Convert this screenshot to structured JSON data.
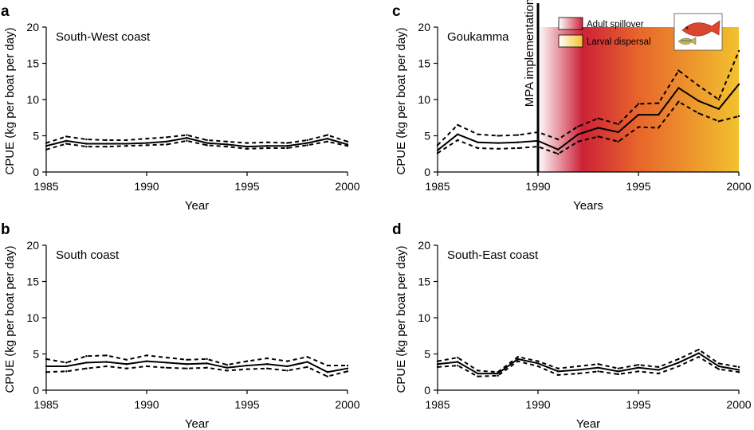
{
  "chart_data": [
    {
      "panel": "a",
      "type": "line",
      "region_label": "South-West coast",
      "xlabel": "Year",
      "ylabel": "CPUE (kg per boat per day)",
      "xlim": [
        1985,
        2000
      ],
      "ylim": [
        0,
        20
      ],
      "xticks": [
        1985,
        1990,
        1995,
        2000
      ],
      "yticks": [
        0,
        5,
        10,
        15,
        20
      ],
      "x": [
        1985,
        1986,
        1987,
        1988,
        1989,
        1990,
        1991,
        1992,
        1993,
        1994,
        1995,
        1996,
        1997,
        1998,
        1999,
        2000
      ],
      "series": [
        {
          "name": "mean",
          "style": "solid",
          "values": [
            3.6,
            4.3,
            3.9,
            3.9,
            3.9,
            4.0,
            4.2,
            4.7,
            4.0,
            3.8,
            3.5,
            3.6,
            3.6,
            4.0,
            4.6,
            3.8
          ]
        },
        {
          "name": "upper",
          "style": "dashed",
          "values": [
            4.0,
            4.9,
            4.5,
            4.4,
            4.4,
            4.6,
            4.8,
            5.1,
            4.4,
            4.2,
            4.0,
            4.1,
            4.0,
            4.4,
            5.1,
            4.2
          ]
        },
        {
          "name": "lower",
          "style": "dashed",
          "values": [
            3.1,
            3.9,
            3.5,
            3.5,
            3.6,
            3.7,
            3.8,
            4.3,
            3.7,
            3.5,
            3.2,
            3.3,
            3.3,
            3.7,
            4.2,
            3.6
          ]
        }
      ]
    },
    {
      "panel": "b",
      "type": "line",
      "region_label": "South coast",
      "xlabel": "Year",
      "ylabel": "CPUE (kg per boat per day)",
      "xlim": [
        1985,
        2000
      ],
      "ylim": [
        0,
        20
      ],
      "xticks": [
        1985,
        1990,
        1995,
        2000
      ],
      "yticks": [
        0,
        5,
        10,
        15,
        20
      ],
      "x": [
        1985,
        1986,
        1987,
        1988,
        1989,
        1990,
        1991,
        1992,
        1993,
        1994,
        1995,
        1996,
        1997,
        1998,
        1999,
        2000
      ],
      "series": [
        {
          "name": "mean",
          "style": "solid",
          "values": [
            3.3,
            3.3,
            3.8,
            3.9,
            3.6,
            4.0,
            3.8,
            3.6,
            3.7,
            3.1,
            3.4,
            3.6,
            3.3,
            3.9,
            2.5,
            3.0
          ]
        },
        {
          "name": "upper",
          "style": "dashed",
          "values": [
            4.3,
            3.8,
            4.7,
            4.8,
            4.2,
            4.8,
            4.5,
            4.2,
            4.3,
            3.5,
            4.0,
            4.4,
            4.0,
            4.6,
            3.4,
            3.4
          ]
        },
        {
          "name": "lower",
          "style": "dashed",
          "values": [
            2.5,
            2.6,
            3.0,
            3.3,
            3.0,
            3.3,
            3.1,
            3.0,
            3.1,
            2.7,
            2.9,
            3.0,
            2.7,
            3.2,
            1.9,
            2.6
          ]
        }
      ]
    },
    {
      "panel": "c",
      "type": "line",
      "region_label": "Goukamma",
      "xlabel": "Years",
      "ylabel": "CPUE (kg per boat per day)",
      "xlim": [
        1985,
        2000
      ],
      "ylim": [
        0,
        20
      ],
      "xticks": [
        1985,
        1990,
        1995,
        2000
      ],
      "yticks": [
        0,
        5,
        10,
        15,
        20
      ],
      "x": [
        1985,
        1986,
        1987,
        1988,
        1989,
        1990,
        1991,
        1992,
        1993,
        1994,
        1995,
        1996,
        1997,
        1998,
        1999,
        2000
      ],
      "series": [
        {
          "name": "mean",
          "style": "solid",
          "values": [
            3.0,
            5.2,
            4.1,
            4.0,
            4.1,
            4.3,
            3.1,
            5.2,
            6.1,
            5.5,
            7.9,
            7.9,
            11.6,
            9.8,
            8.7,
            12.1
          ]
        },
        {
          "name": "upper",
          "style": "dashed",
          "values": [
            3.7,
            6.5,
            5.2,
            5.0,
            5.1,
            5.5,
            4.5,
            6.3,
            7.4,
            6.6,
            9.4,
            9.5,
            14.0,
            11.9,
            10.0,
            16.7
          ]
        },
        {
          "name": "lower",
          "style": "dashed",
          "values": [
            2.6,
            4.4,
            3.3,
            3.2,
            3.3,
            3.5,
            2.5,
            4.2,
            4.9,
            4.2,
            6.2,
            6.1,
            9.7,
            8.1,
            7.0,
            7.7
          ]
        }
      ],
      "annotation_text": "MPA implementation",
      "annotation_x": 1990,
      "legend": [
        {
          "label": "Adult spillover",
          "from_color": "#ffffff",
          "to_color": "#cc2238"
        },
        {
          "label": "Larval dispersal",
          "from_color": "#ffffff",
          "to_color": "#f2c12e"
        }
      ],
      "shading": {
        "from_year": 1990,
        "to_year": 2000,
        "stops": [
          {
            "year": 1990,
            "color": "#ffffff"
          },
          {
            "year": 1992.2,
            "color": "#cc2238"
          },
          {
            "year": 1995,
            "color": "#e8652b"
          },
          {
            "year": 2000,
            "color": "#f2c12e"
          }
        ]
      }
    },
    {
      "panel": "d",
      "type": "line",
      "region_label": "South-East coast",
      "xlabel": "Year",
      "ylabel": "CPUE (kg per boat  per day)",
      "xlim": [
        1985,
        2000
      ],
      "ylim": [
        0,
        20
      ],
      "xticks": [
        1985,
        1990,
        1995,
        2000
      ],
      "yticks": [
        0,
        5,
        10,
        15,
        20
      ],
      "x": [
        1985,
        1986,
        1987,
        1988,
        1989,
        1990,
        1991,
        1992,
        1993,
        1994,
        1995,
        1996,
        1997,
        1998,
        1999,
        2000
      ],
      "series": [
        {
          "name": "mean",
          "style": "solid",
          "values": [
            3.6,
            3.9,
            2.3,
            2.3,
            4.3,
            3.7,
            2.6,
            2.8,
            3.1,
            2.6,
            3.1,
            2.8,
            3.8,
            5.1,
            3.3,
            2.8
          ]
        },
        {
          "name": "upper",
          "style": "dashed",
          "values": [
            4.0,
            4.5,
            2.7,
            2.5,
            4.6,
            4.0,
            3.0,
            3.3,
            3.6,
            3.0,
            3.5,
            3.2,
            4.3,
            5.6,
            3.7,
            3.2
          ]
        },
        {
          "name": "lower",
          "style": "dashed",
          "values": [
            3.2,
            3.4,
            1.9,
            2.0,
            4.0,
            3.3,
            2.1,
            2.3,
            2.6,
            2.2,
            2.6,
            2.3,
            3.3,
            4.6,
            2.9,
            2.5
          ]
        }
      ]
    }
  ]
}
